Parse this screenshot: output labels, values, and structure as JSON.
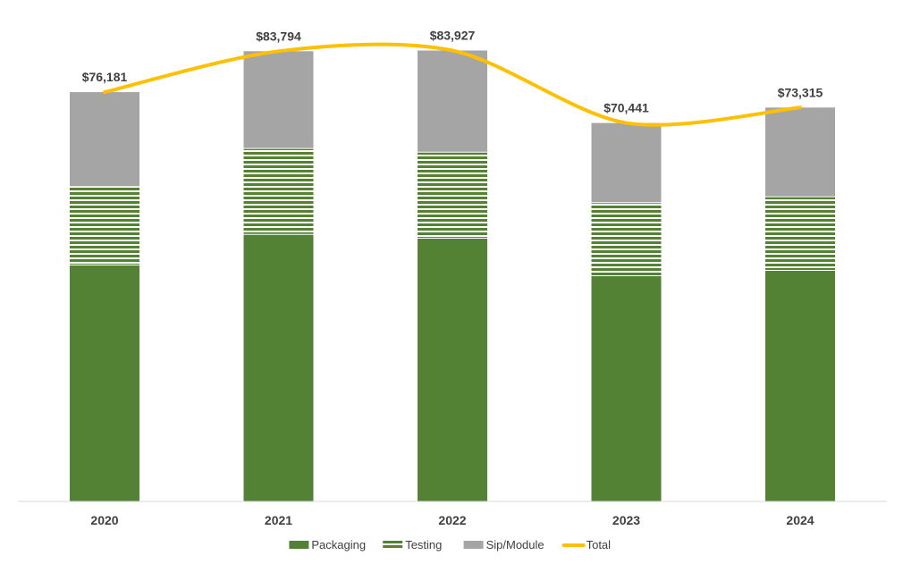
{
  "chart_data": {
    "type": "bar",
    "stacked": true,
    "categories": [
      "2020",
      "2021",
      "2022",
      "2023",
      "2024"
    ],
    "series": [
      {
        "name": "Packaging",
        "type": "bar",
        "color": "#548235",
        "fill_style": "solid",
        "values": [
          44000,
          49700,
          49000,
          42000,
          43000
        ]
      },
      {
        "name": "Testing",
        "type": "bar",
        "color": "#548235",
        "fill_style": "horizontal-stripes",
        "values": [
          14600,
          16000,
          16000,
          13600,
          13700
        ]
      },
      {
        "name": "Sip/Module",
        "type": "bar",
        "color": "#a5a5a5",
        "fill_style": "solid",
        "values": [
          17581,
          18094,
          18927,
          14841,
          16615
        ]
      },
      {
        "name": "Total",
        "type": "line",
        "smooth": true,
        "color": "#ffc000",
        "values": [
          76181,
          83794,
          83927,
          70441,
          73315
        ]
      }
    ],
    "data_labels": [
      "$76,181",
      "$83,794",
      "$83,927",
      "$70,441",
      "$73,315"
    ],
    "ylim": [
      0,
      90000
    ],
    "grid": false,
    "legend_position": "bottom",
    "title": "",
    "xlabel": "",
    "ylabel": ""
  }
}
